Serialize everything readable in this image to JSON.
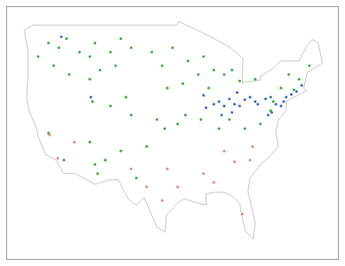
{
  "chart_data": {
    "type": "scatter",
    "tick_labels": false,
    "grid": false,
    "xlim": [
      -128,
      -64
    ],
    "ylim": [
      23,
      51
    ],
    "xticks": [],
    "yticks": [],
    "series": [
      {
        "type": "line",
        "color": "#b8b8b8",
        "line_style": "solid",
        "x": [
          -124.7,
          -123,
          -95.2,
          -94.8,
          -89.6,
          -84.8,
          -82.4,
          -82.5,
          -79,
          -79,
          -76.5,
          -75,
          -71.5,
          -70,
          -69,
          -67.8,
          -67,
          -70,
          -70.6,
          -70,
          -71.5,
          -74,
          -74,
          -75.5,
          -76,
          -75.5,
          -77,
          -79,
          -81,
          -81.4,
          -80,
          -80.4,
          -81.8,
          -82.7,
          -83,
          -84.5,
          -86,
          -88,
          -89.6,
          -89.4,
          -91,
          -93.8,
          -95,
          -97.2,
          -97.4,
          -99,
          -100.5,
          -101.5,
          -103,
          -104.5,
          -106.5,
          -108.2,
          -111,
          -114.8,
          -117.1,
          -118.5,
          -120.6,
          -121.9,
          -122.5,
          -123.8,
          -124.2,
          -124,
          -124,
          -124.7
        ],
        "y": [
          48.4,
          49,
          49,
          49.4,
          48,
          46.5,
          45.3,
          42.6,
          42.9,
          43.3,
          44.2,
          45,
          45,
          46.7,
          47.4,
          47,
          44.8,
          43.7,
          42,
          41.7,
          41.3,
          40.5,
          39.5,
          38.5,
          37,
          35.5,
          34.5,
          33.5,
          32,
          30.5,
          27,
          25.2,
          26,
          28,
          29.2,
          30,
          30.4,
          30.4,
          30.2,
          29,
          29.2,
          29.7,
          29.2,
          27.8,
          26,
          26.5,
          28.5,
          29.8,
          29,
          29.6,
          31.8,
          31.8,
          31.3,
          32.5,
          32.5,
          34,
          34.6,
          36.5,
          37.8,
          39.5,
          41,
          43,
          46.2,
          48.4
        ]
      },
      {
        "type": "scatter",
        "color": "#33aa33",
        "marker": "circle",
        "x": [
          -120,
          -118,
          -116.5,
          -114,
          -112,
          -111,
          -108,
          -106,
          -104,
          -110,
          -112,
          -116,
          -119,
          -122,
          -107,
          -105,
          -108,
          -111.5,
          -112,
          -111,
          -110.5,
          -109,
          -106,
          -104,
          -100,
          -98,
          -97,
          -96,
          -93,
          -94,
          -91,
          -90,
          -89,
          -88,
          -86,
          -84.5,
          -83,
          -93.5,
          -95,
          -97.5,
          -99,
          -90.5,
          -87,
          -85,
          -82,
          -79,
          -77,
          -75,
          -73.5,
          -71.5,
          -69.5,
          -72.5,
          -80,
          -76.5,
          -117,
          -120,
          -103,
          -101
        ],
        "y": [
          47,
          46.5,
          47.5,
          46,
          45.5,
          47,
          46,
          47.5,
          46.5,
          44,
          43,
          43.5,
          44.5,
          45.5,
          44.5,
          41,
          40,
          40.5,
          36,
          33.5,
          32.5,
          34,
          35,
          39,
          46,
          44.5,
          42,
          46.5,
          45,
          42.5,
          43.5,
          45.5,
          42,
          44,
          43.5,
          44,
          42.8,
          39,
          38,
          37.5,
          38.5,
          38.5,
          37.5,
          38.5,
          37.5,
          38,
          39.5,
          42,
          43.5,
          43,
          44.5,
          41.8,
          43,
          40.5,
          34,
          37,
          32,
          35.5
        ]
      },
      {
        "type": "scatter",
        "color": "#3366cc",
        "marker": "circle",
        "x": [
          -88,
          -87,
          -86,
          -85,
          -84,
          -83,
          -82,
          -81,
          -80,
          -79.5,
          -78,
          -77,
          -76,
          -75,
          -74.5,
          -74,
          -73,
          -72,
          -71,
          -89.5,
          -90,
          -84.5,
          -86.5,
          -83.5,
          -77.5,
          -76.8,
          -111.8,
          -117.5
        ],
        "y": [
          40.2,
          40.5,
          40,
          40.8,
          40.2,
          40,
          40.7,
          41,
          40.5,
          40.2,
          40.8,
          41,
          40.2,
          40,
          40.5,
          41,
          41.3,
          41.6,
          42.3,
          39.8,
          41.2,
          39.3,
          39,
          41.5,
          39,
          39.3,
          41,
          47.7
        ]
      },
      {
        "type": "scatter",
        "color": "#e88080",
        "marker": "circle",
        "x": [
          -97,
          -95,
          -98,
          -84,
          -81,
          -86,
          -90,
          -101,
          -115,
          -118.2,
          -119.8,
          -88,
          -82.5,
          -80.5,
          -104
        ],
        "y": [
          33,
          31,
          29.5,
          33.8,
          34,
          35,
          32.5,
          31,
          36,
          34.2,
          36.8,
          31.5,
          28,
          35.5,
          33
        ]
      }
    ]
  }
}
